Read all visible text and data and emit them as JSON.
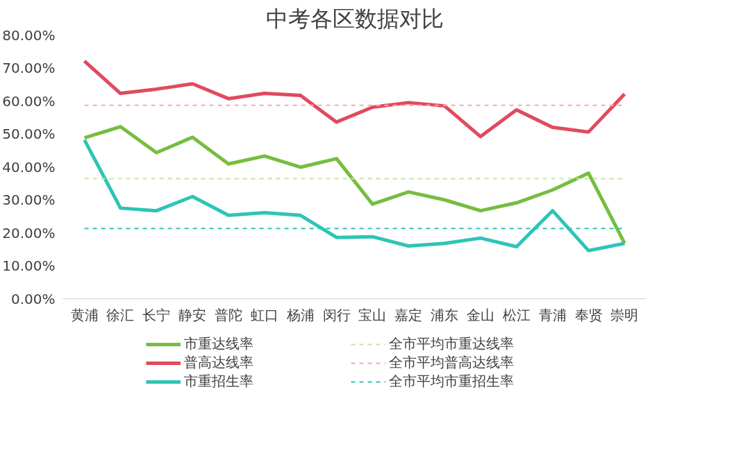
{
  "chart_data": {
    "type": "line",
    "title": "中考各区数据对比",
    "categories": [
      "黄浦",
      "徐汇",
      "长宁",
      "静安",
      "普陀",
      "虹口",
      "杨浦",
      "闵行",
      "宝山",
      "嘉定",
      "浦东",
      "金山",
      "松江",
      "青浦",
      "奉贤",
      "崇明"
    ],
    "series": [
      {
        "name": "市重达线率",
        "color": "#76bd3f",
        "values": [
          48.8,
          52.2,
          44.3,
          49.0,
          40.9,
          43.3,
          39.9,
          42.5,
          28.7,
          32.4,
          30.0,
          26.7,
          29.1,
          33.0,
          38.1,
          16.8
        ]
      },
      {
        "name": "普高达线率",
        "color": "#e14a5e",
        "values": [
          72.1,
          62.3,
          63.6,
          65.2,
          60.7,
          62.3,
          61.7,
          53.6,
          58.1,
          59.5,
          58.5,
          49.2,
          57.3,
          52.0,
          50.6,
          62.1
        ]
      },
      {
        "name": "市重招生率",
        "color": "#2ec4b6",
        "values": [
          48.2,
          27.5,
          26.7,
          31.0,
          25.3,
          26.1,
          25.3,
          18.6,
          18.8,
          16.0,
          16.8,
          18.4,
          15.8,
          26.7,
          14.6,
          16.8
        ]
      }
    ],
    "ref_lines": [
      {
        "axis": "y",
        "value": 36.4,
        "label": "全市平均市重达线率",
        "color": "#c5e5a5",
        "line_style": "dashed"
      },
      {
        "axis": "y",
        "value": 58.7,
        "label": "全市平均普高达线率",
        "color": "#f4a9b5",
        "line_style": "dashed"
      },
      {
        "axis": "y",
        "value": 21.3,
        "label": "全市平均市重招生率",
        "color": "#2ec4b6",
        "line_style": "dashed"
      }
    ],
    "ylim": [
      0,
      80
    ],
    "yticks": [
      {
        "value": 0,
        "label": "0.00%"
      },
      {
        "value": 10,
        "label": "10.00%"
      },
      {
        "value": 20,
        "label": "20.00%"
      },
      {
        "value": 30,
        "label": "30.00%"
      },
      {
        "value": 40,
        "label": "40.00%"
      },
      {
        "value": 50,
        "label": "50.00%"
      },
      {
        "value": 60,
        "label": "60.00%"
      },
      {
        "value": 70,
        "label": "70.00%"
      },
      {
        "value": 80,
        "label": "80.00%"
      }
    ],
    "grid": false,
    "legend": "bottom",
    "marker": "none",
    "line_style": "solid"
  }
}
